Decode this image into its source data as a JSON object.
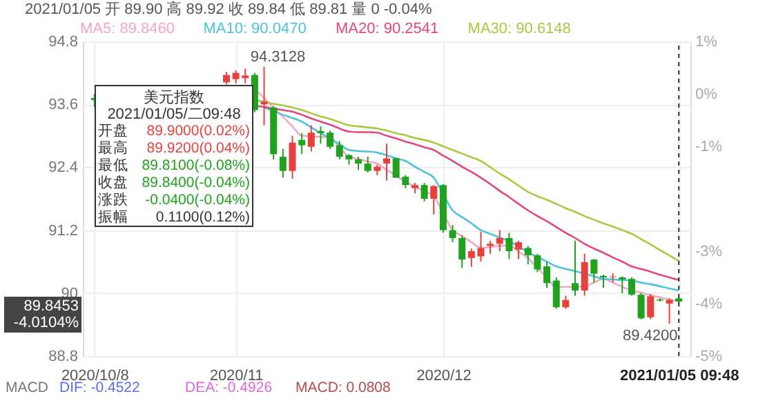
{
  "chart_data": {
    "type": "candlestick",
    "categories": [
      "2020/10/8",
      null,
      null,
      null,
      null,
      null,
      null,
      null,
      null,
      null,
      null,
      null,
      null,
      null,
      null,
      "2020/11",
      null,
      null,
      null,
      null,
      null,
      null,
      null,
      null,
      null,
      null,
      null,
      null,
      null,
      null,
      null,
      null,
      null,
      null,
      null,
      null,
      null,
      "2020/12",
      null,
      null,
      null,
      null,
      null,
      null,
      null,
      null,
      null,
      null,
      null,
      null,
      null,
      null,
      null,
      null,
      null,
      null,
      null,
      null,
      null,
      null,
      null,
      null,
      "2021/01/05 09:48"
    ],
    "ohlc": [
      [
        93.72,
        93.8,
        93.55,
        93.68
      ],
      null,
      null,
      null,
      null,
      null,
      null,
      null,
      null,
      null,
      null,
      null,
      null,
      null,
      [
        94.02,
        94.22,
        93.98,
        94.16
      ],
      [
        94.08,
        94.25,
        94.0,
        94.2
      ],
      [
        94.1,
        94.28,
        94.0,
        94.15
      ],
      [
        94.16,
        94.2,
        93.45,
        93.49
      ],
      [
        93.6,
        94.3128,
        93.2,
        93.65
      ],
      [
        93.54,
        93.56,
        92.55,
        92.65
      ],
      [
        92.6,
        92.75,
        92.2,
        92.33
      ],
      [
        92.33,
        93.0,
        92.18,
        92.87
      ],
      [
        92.92,
        93.05,
        92.65,
        92.82
      ],
      [
        92.79,
        93.2,
        92.7,
        93.06
      ],
      [
        93.09,
        93.18,
        92.85,
        93.05
      ],
      [
        93.06,
        93.1,
        92.75,
        92.79
      ],
      [
        92.82,
        92.9,
        92.55,
        92.6
      ],
      [
        92.63,
        92.65,
        92.45,
        92.55
      ],
      [
        92.55,
        92.6,
        92.35,
        92.47
      ],
      [
        92.47,
        92.6,
        92.3,
        92.33
      ],
      [
        92.33,
        92.45,
        92.25,
        92.41
      ],
      [
        92.47,
        92.85,
        92.15,
        92.57
      ],
      [
        92.57,
        92.58,
        92.2,
        92.2
      ],
      [
        92.22,
        92.25,
        92.0,
        92.06
      ],
      [
        92.0,
        92.1,
        91.9,
        92.06
      ],
      [
        92.06,
        92.1,
        91.75,
        91.8
      ],
      [
        91.8,
        92.06,
        91.5,
        92.04
      ],
      [
        92.06,
        92.08,
        91.15,
        91.2
      ],
      [
        91.2,
        91.3,
        90.97,
        91.05
      ],
      [
        91.05,
        91.1,
        90.48,
        90.64
      ],
      [
        90.67,
        90.85,
        90.5,
        90.8
      ],
      [
        90.7,
        91.17,
        90.6,
        90.86
      ],
      [
        90.9,
        91.0,
        90.75,
        90.94
      ],
      [
        90.94,
        91.2,
        90.8,
        91.05
      ],
      [
        91.05,
        91.15,
        90.65,
        90.8
      ],
      [
        90.83,
        91.0,
        90.65,
        90.97
      ],
      [
        90.86,
        90.9,
        90.55,
        90.72
      ],
      [
        90.72,
        90.75,
        90.4,
        90.45
      ],
      [
        90.51,
        90.6,
        90.1,
        90.19
      ],
      [
        90.24,
        90.3,
        89.7,
        89.73
      ],
      [
        89.73,
        89.95,
        89.7,
        89.87
      ],
      [
        90.19,
        91.0,
        89.95,
        90.05
      ],
      [
        90.05,
        90.75,
        89.95,
        90.59
      ],
      [
        90.64,
        90.65,
        90.2,
        90.37
      ],
      [
        90.33,
        90.35,
        90.1,
        90.3
      ],
      [
        90.3,
        90.38,
        90.2,
        90.31
      ],
      [
        90.3,
        90.32,
        90.0,
        90.26
      ],
      [
        90.27,
        90.3,
        89.95,
        89.97
      ],
      [
        89.97,
        90.0,
        89.5,
        89.52
      ],
      [
        89.54,
        89.98,
        89.5,
        89.94
      ],
      [
        89.88,
        89.9,
        89.84,
        89.86
      ],
      [
        89.8,
        89.9,
        89.42,
        89.87
      ],
      [
        89.9,
        89.92,
        89.81,
        89.84
      ]
    ],
    "series": [
      {
        "name": "MA5: 89.8460",
        "color": "#f4a6c4",
        "type": "line",
        "values": [
          null,
          null,
          null,
          null,
          null,
          null,
          null,
          null,
          null,
          null,
          null,
          null,
          null,
          null,
          null,
          null,
          null,
          93.89,
          93.72,
          93.54,
          93.36,
          93.18,
          93.0,
          92.99,
          92.98,
          92.97,
          92.78,
          92.6,
          92.56,
          92.51,
          92.47,
          92.35,
          92.24,
          92.12,
          92.03,
          91.94,
          91.85,
          91.52,
          91.2,
          91.09,
          90.97,
          90.86,
          90.88,
          90.9,
          90.91,
          90.79,
          90.67,
          90.48,
          90.3,
          90.11,
          90.12,
          90.12,
          90.13,
          90.2,
          90.27,
          90.2,
          90.12,
          90.05,
          90.01,
          89.96,
          89.92,
          89.88,
          89.85
        ]
      },
      {
        "name": "MA10: 90.0470",
        "color": "#4ec3df",
        "type": "line",
        "values": [
          null,
          null,
          null,
          null,
          null,
          null,
          null,
          null,
          null,
          null,
          null,
          null,
          null,
          null,
          null,
          null,
          null,
          null,
          93.54,
          93.47,
          93.4,
          93.34,
          93.27,
          93.16,
          93.05,
          92.95,
          92.84,
          92.73,
          92.71,
          92.7,
          92.68,
          92.63,
          92.57,
          92.52,
          92.41,
          92.31,
          92.2,
          91.89,
          91.58,
          91.45,
          91.33,
          91.2,
          91.13,
          91.06,
          90.99,
          90.89,
          90.78,
          90.69,
          90.6,
          90.51,
          90.46,
          90.42,
          90.37,
          90.32,
          90.27,
          90.26,
          90.25,
          90.24,
          90.2,
          90.17,
          90.13,
          90.09,
          90.05
        ]
      },
      {
        "name": "MA20: 90.2541",
        "color": "#e4467e",
        "type": "line",
        "values": [
          null,
          null,
          null,
          null,
          null,
          null,
          null,
          null,
          null,
          null,
          null,
          null,
          null,
          null,
          null,
          null,
          null,
          93.57,
          93.55,
          93.52,
          93.49,
          93.46,
          93.4,
          93.33,
          93.27,
          93.21,
          93.14,
          93.08,
          93.07,
          93.07,
          93.06,
          93.0,
          92.95,
          92.89,
          92.84,
          92.78,
          92.73,
          92.62,
          92.52,
          92.41,
          92.31,
          92.2,
          92.08,
          91.95,
          91.83,
          91.7,
          91.58,
          91.47,
          91.37,
          91.26,
          91.15,
          91.05,
          90.94,
          90.85,
          90.77,
          90.68,
          90.6,
          90.51,
          90.46,
          90.41,
          90.35,
          90.3,
          90.25
        ]
      },
      {
        "name": "MA30: 90.6148",
        "color": "#a8c940",
        "type": "line",
        "values": [
          null,
          null,
          null,
          null,
          null,
          null,
          null,
          null,
          null,
          null,
          null,
          null,
          null,
          null,
          null,
          null,
          null,
          93.68,
          93.65,
          93.61,
          93.58,
          93.54,
          93.49,
          93.43,
          93.37,
          93.32,
          93.26,
          93.2,
          93.18,
          93.16,
          93.14,
          93.1,
          93.05,
          93.01,
          92.96,
          92.92,
          92.87,
          92.8,
          92.73,
          92.66,
          92.59,
          92.52,
          92.4,
          92.28,
          92.17,
          92.05,
          91.93,
          91.85,
          91.78,
          91.7,
          91.62,
          91.55,
          91.47,
          91.4,
          91.33,
          91.27,
          91.2,
          91.13,
          91.03,
          90.93,
          90.82,
          90.72,
          90.61
        ]
      }
    ],
    "ylim": [
      88.8,
      94.8
    ],
    "yticks": [
      {
        "value": 94.8,
        "label": "94.8"
      },
      {
        "value": 93.6,
        "label": "93.6"
      },
      {
        "value": 92.4,
        "label": "92.4"
      },
      {
        "value": 91.2,
        "label": "91.2"
      },
      {
        "value": 90,
        "label": "90"
      },
      {
        "value": 88.8,
        "label": "88.8"
      }
    ],
    "y2lim": [
      -5,
      1
    ],
    "y2ticks": [
      {
        "value": 1,
        "label": "1%"
      },
      {
        "value": 0,
        "label": "0%"
      },
      {
        "value": -1,
        "label": "-1%"
      },
      {
        "value": -3,
        "label": "-3%"
      },
      {
        "value": -4,
        "label": "-4%"
      },
      {
        "value": -5,
        "label": "-5%"
      }
    ],
    "grid": true,
    "legend": "top left",
    "ref_lines": [
      {
        "axis": "x",
        "value": "2021/01/05 09:48",
        "line_style": "dashed",
        "color": "#333333"
      }
    ],
    "annotations": [
      "2021/01/05 开 89.90 高 89.92 收 89.84 低 89.81 量 0 -0.04%",
      "美元指数",
      "2021/01/05/二09:48",
      "开盘",
      "89.9000(0.02%)",
      "最高",
      "89.9200(0.04%)",
      "最低",
      "89.8100(-0.08%)",
      "收盘",
      "89.8400(-0.04%)",
      "涨跌",
      "-0.0400(-0.04%)",
      "振幅",
      "0.1100(0.12%)",
      "89.8453",
      "-4.0104%",
      "MACD",
      "DIF: -0.4522",
      "DEA: -0.4926",
      "MACD: 0.0808",
      "94.3128",
      "89.4200"
    ]
  }
}
